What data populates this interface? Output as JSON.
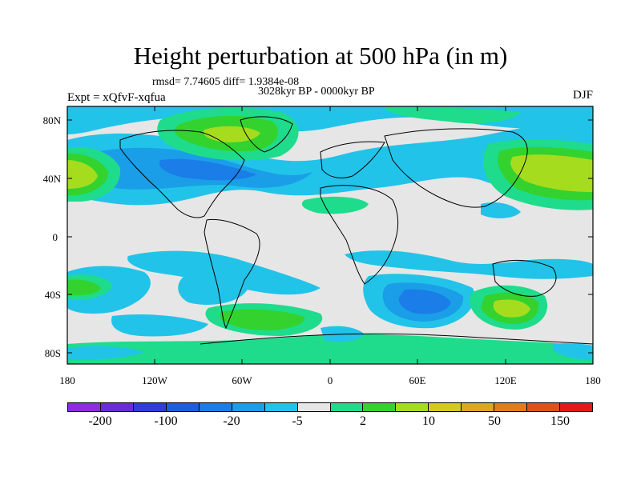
{
  "title": "Height perturbation at 500 hPa (in m)",
  "rmsd_text": "rmsd= 7.74605 diff= 1.9384e-08",
  "period": "3028kyr BP - 0000kyr BP",
  "experiment": "Expt = xQfvF-xqfua",
  "season": "DJF",
  "axes": {
    "x_ticks": [
      "180",
      "120W",
      "60W",
      "0",
      "60E",
      "120E",
      "180"
    ],
    "y_ticks": [
      "80N",
      "40N",
      "0",
      "40S",
      "80S"
    ]
  },
  "colorbar": {
    "colors": [
      "#8e2de0",
      "#6b2bd9",
      "#2f3ddb",
      "#1e5de0",
      "#1a7de8",
      "#1a9ee8",
      "#22c3e8",
      "#e6e6e6",
      "#1edc8c",
      "#34d22f",
      "#a6dc1e",
      "#d6c91e",
      "#dca81e",
      "#e07c1a",
      "#e0501a",
      "#e01a1a"
    ],
    "labels": [
      "-200",
      "-100",
      "-20",
      "-5",
      "2",
      "10",
      "50",
      "150"
    ]
  },
  "field_colors": {
    "background": "#e6e6e6",
    "neg_light": "#22c3e8",
    "neg_mid": "#1a9ee8",
    "neg_dark": "#1a7de8",
    "pos_light": "#1edc8c",
    "pos_mid": "#34d22f",
    "pos_high": "#a6dc1e",
    "pos_max": "#d6c91e"
  }
}
